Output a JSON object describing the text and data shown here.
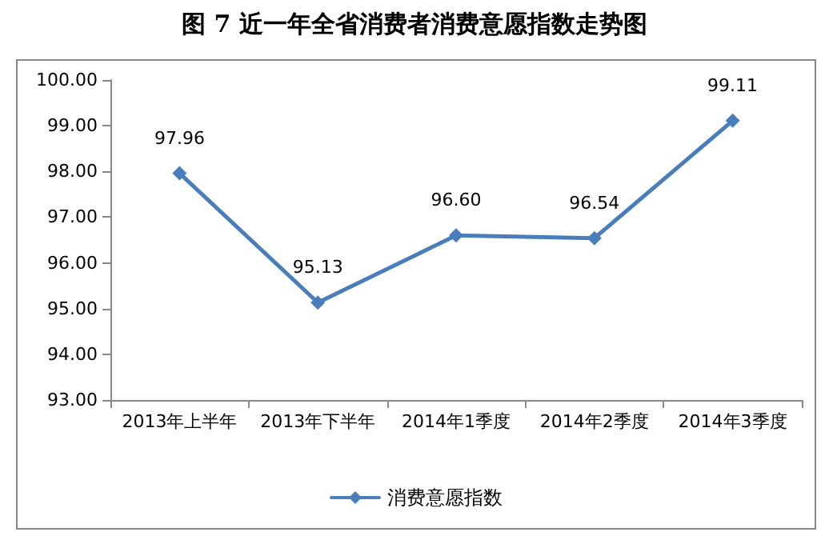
{
  "chart_data": {
    "type": "line",
    "title": "图 7  近一年全省消费者消费意愿指数走势图",
    "categories": [
      "2013年上半年",
      "2013年下半年",
      "2014年1季度",
      "2014年2季度",
      "2014年3季度"
    ],
    "series": [
      {
        "name": "消费意愿指数",
        "color": "#4a7ebb",
        "values": [
          97.96,
          95.13,
          96.6,
          96.54,
          99.11
        ],
        "value_labels": [
          "97.96",
          "95.13",
          "96.60",
          "96.54",
          "99.11"
        ]
      }
    ],
    "ylim": [
      93,
      100
    ],
    "yticks": [
      {
        "value": 93,
        "label": "93.00"
      },
      {
        "value": 94,
        "label": "94.00"
      },
      {
        "value": 95,
        "label": "95.00"
      },
      {
        "value": 96,
        "label": "96.00"
      },
      {
        "value": 97,
        "label": "97.00"
      },
      {
        "value": 98,
        "label": "98.00"
      },
      {
        "value": 99,
        "label": "99.00"
      },
      {
        "value": 100,
        "label": "100.00"
      }
    ],
    "grid": false,
    "legend": "bottom",
    "marker": "diamond",
    "line_style": "solid"
  }
}
